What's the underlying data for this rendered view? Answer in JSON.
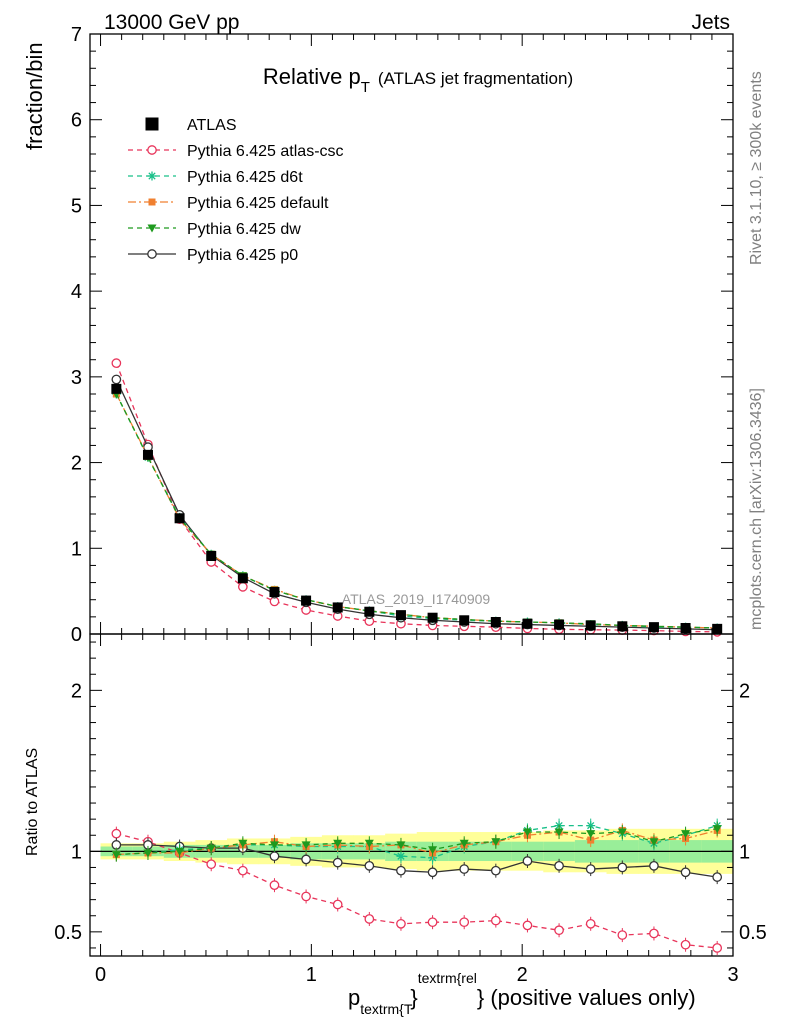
{
  "header": {
    "left": "13000 GeV pp",
    "right": "Jets"
  },
  "side_labels": {
    "top": "Rivet 3.1.10, ≥ 300k events",
    "bottom": "mcplots.cern.ch [arXiv:1306.3436]"
  },
  "watermark": "ATLAS_2019_I1740909",
  "colors": {
    "atlas": "#000000",
    "atlas_csc": "#e8345a",
    "d6t": "#19c089",
    "default": "#f08030",
    "dw": "#1e9a1e",
    "p0": "#333333",
    "band_inner": "#99ee99",
    "band_outer": "#ffff99"
  },
  "chart_data": [
    {
      "type": "line",
      "panel": "main",
      "title_main": "Relative p",
      "title_sub": "T",
      "title_rest": "(ATLAS jet fragmentation)",
      "ylabel": "fraction/bin",
      "xlim": [
        -0.05,
        3.0
      ],
      "ylim": [
        0,
        7
      ],
      "y_ticks": [
        "0",
        "1",
        "2",
        "3",
        "4",
        "5",
        "6",
        "7"
      ],
      "x": [
        0.075,
        0.225,
        0.375,
        0.525,
        0.675,
        0.825,
        0.975,
        1.125,
        1.275,
        1.425,
        1.575,
        1.725,
        1.875,
        2.025,
        2.175,
        2.325,
        2.475,
        2.625,
        2.775,
        2.925
      ],
      "series": [
        {
          "name": "ATLAS",
          "key": "atlas",
          "values": [
            2.86,
            2.09,
            1.35,
            0.91,
            0.65,
            0.49,
            0.39,
            0.31,
            0.26,
            0.22,
            0.19,
            0.16,
            0.14,
            0.12,
            0.11,
            0.1,
            0.09,
            0.08,
            0.07,
            0.06
          ]
        },
        {
          "name": "Pythia 6.425 atlas-csc",
          "key": "atlas_csc",
          "values": [
            3.16,
            2.21,
            1.34,
            0.84,
            0.55,
            0.38,
            0.28,
            0.21,
            0.15,
            0.12,
            0.1,
            0.09,
            0.08,
            0.065,
            0.055,
            0.05,
            0.045,
            0.04,
            0.03,
            0.025
          ]
        },
        {
          "name": "Pythia 6.425 d6t",
          "key": "d6t",
          "values": [
            2.8,
            2.06,
            1.36,
            0.93,
            0.68,
            0.51,
            0.4,
            0.32,
            0.27,
            0.21,
            0.18,
            0.16,
            0.15,
            0.14,
            0.13,
            0.11,
            0.1,
            0.08,
            0.08,
            0.07
          ]
        },
        {
          "name": "Pythia 6.425 default",
          "key": "default",
          "values": [
            2.8,
            2.07,
            1.34,
            0.93,
            0.68,
            0.52,
            0.4,
            0.32,
            0.27,
            0.23,
            0.19,
            0.17,
            0.15,
            0.14,
            0.13,
            0.11,
            0.1,
            0.09,
            0.08,
            0.07
          ]
        },
        {
          "name": "Pythia 6.425 dw",
          "key": "dw",
          "values": [
            2.8,
            2.06,
            1.35,
            0.93,
            0.68,
            0.51,
            0.4,
            0.32,
            0.27,
            0.23,
            0.19,
            0.17,
            0.15,
            0.14,
            0.13,
            0.12,
            0.1,
            0.09,
            0.08,
            0.07
          ]
        },
        {
          "name": "Pythia 6.425 p0",
          "key": "p0",
          "values": [
            2.97,
            2.18,
            1.39,
            0.92,
            0.66,
            0.47,
            0.37,
            0.29,
            0.23,
            0.19,
            0.16,
            0.14,
            0.12,
            0.11,
            0.1,
            0.09,
            0.08,
            0.07,
            0.06,
            0.05
          ]
        }
      ]
    },
    {
      "type": "line",
      "panel": "ratio",
      "ylabel": "Ratio to ATLAS",
      "xlabel_p": "p",
      "xlabel_sub": "textrm{T",
      "xlabel_sup": "textrm{rel",
      "xlabel_brace": "}",
      "xlabel_rest": "} (positive values only)",
      "xlim": [
        -0.05,
        3.0
      ],
      "ylim": [
        0.35,
        2.35
      ],
      "y_ticks": [
        "0.5",
        "1",
        "2"
      ],
      "x_ticks": [
        "0",
        "1",
        "2",
        "3"
      ],
      "x": [
        0.075,
        0.225,
        0.375,
        0.525,
        0.675,
        0.825,
        0.975,
        1.125,
        1.275,
        1.425,
        1.575,
        1.725,
        1.875,
        2.025,
        2.175,
        2.325,
        2.475,
        2.625,
        2.775,
        2.925
      ],
      "band_inner": [
        0.03,
        0.03,
        0.04,
        0.04,
        0.04,
        0.04,
        0.05,
        0.05,
        0.05,
        0.06,
        0.06,
        0.06,
        0.06,
        0.06,
        0.06,
        0.07,
        0.07,
        0.07,
        0.07,
        0.07
      ],
      "band_outer": [
        0.05,
        0.05,
        0.06,
        0.07,
        0.08,
        0.08,
        0.09,
        0.1,
        0.1,
        0.11,
        0.12,
        0.12,
        0.12,
        0.12,
        0.13,
        0.13,
        0.14,
        0.14,
        0.14,
        0.14
      ],
      "series": [
        {
          "name": "Pythia 6.425 atlas-csc",
          "key": "atlas_csc",
          "values": [
            1.11,
            1.06,
            0.99,
            0.92,
            0.88,
            0.79,
            0.72,
            0.67,
            0.58,
            0.55,
            0.56,
            0.56,
            0.57,
            0.54,
            0.51,
            0.55,
            0.48,
            0.49,
            0.42,
            0.4
          ]
        },
        {
          "name": "Pythia 6.425 d6t",
          "key": "d6t",
          "values": [
            0.98,
            0.99,
            1.01,
            1.02,
            1.04,
            1.04,
            1.03,
            1.03,
            1.03,
            0.97,
            0.96,
            1.03,
            1.06,
            1.13,
            1.16,
            1.16,
            1.11,
            1.05,
            1.1,
            1.16
          ]
        },
        {
          "name": "Pythia 6.425 default",
          "key": "default",
          "values": [
            0.98,
            0.99,
            0.99,
            1.02,
            1.04,
            1.06,
            1.03,
            1.04,
            1.03,
            1.04,
            0.99,
            1.04,
            1.06,
            1.1,
            1.12,
            1.07,
            1.13,
            1.07,
            1.08,
            1.13
          ]
        },
        {
          "name": "Pythia 6.425 dw",
          "key": "dw",
          "values": [
            0.98,
            0.99,
            1.0,
            1.02,
            1.05,
            1.04,
            1.04,
            1.05,
            1.05,
            1.04,
            1.01,
            1.05,
            1.06,
            1.12,
            1.12,
            1.11,
            1.12,
            1.06,
            1.11,
            1.14
          ]
        },
        {
          "name": "Pythia 6.425 p0",
          "key": "p0",
          "values": [
            1.04,
            1.04,
            1.03,
            1.02,
            1.02,
            0.97,
            0.95,
            0.93,
            0.91,
            0.88,
            0.87,
            0.89,
            0.88,
            0.94,
            0.91,
            0.89,
            0.9,
            0.91,
            0.87,
            0.84
          ]
        }
      ]
    }
  ]
}
